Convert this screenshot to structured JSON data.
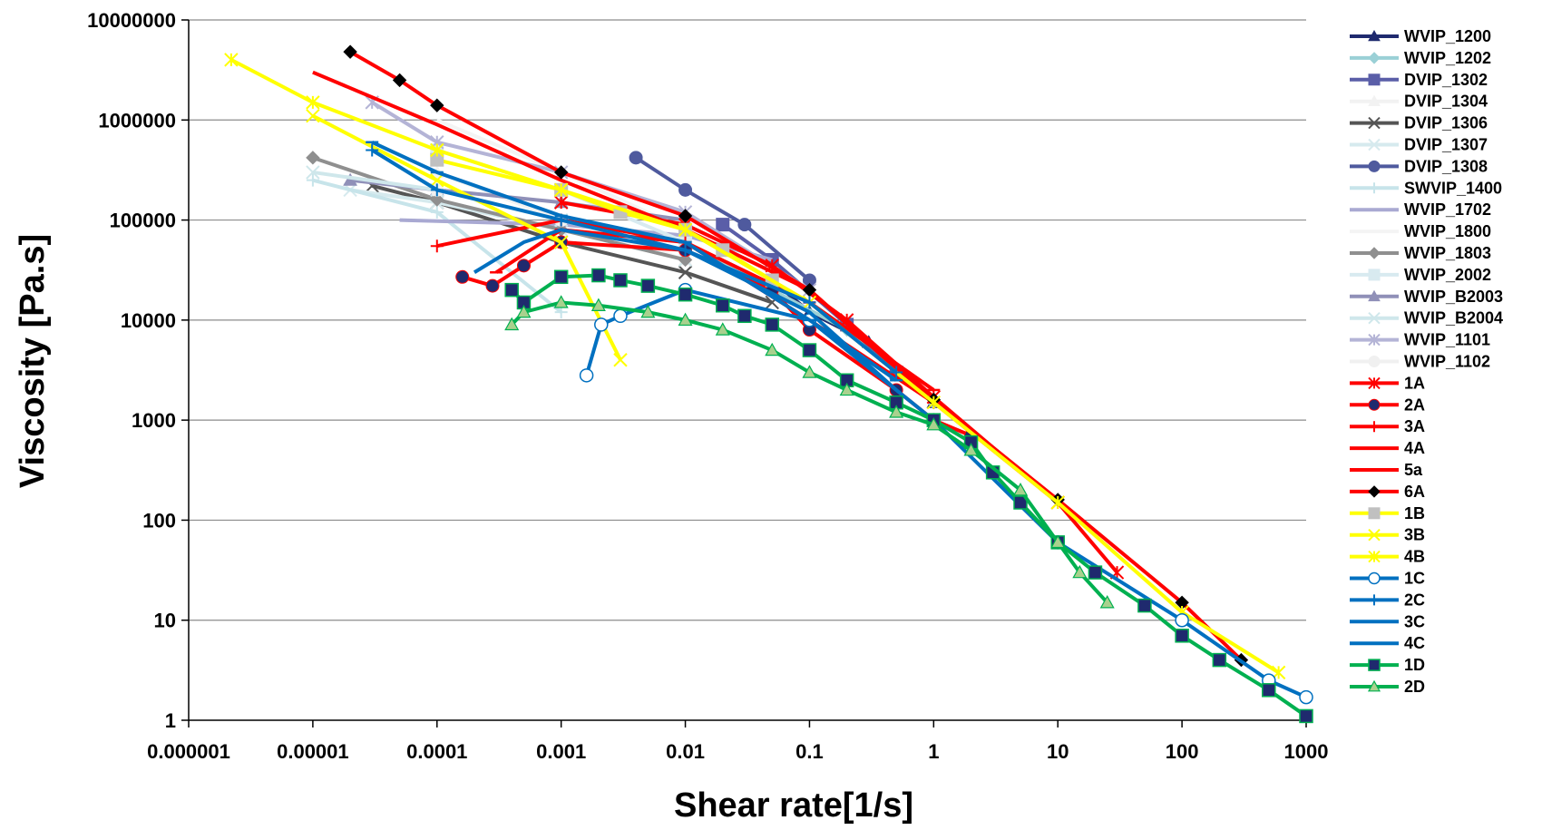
{
  "chart_data": {
    "type": "line",
    "title": "",
    "xlabel": "Shear rate[1/s]",
    "ylabel": "Viscosity [Pa.s]",
    "x_scale": "log",
    "y_scale": "log",
    "xlim": [
      1e-06,
      1000
    ],
    "ylim": [
      1,
      10000000
    ],
    "x_ticks": [
      "0.000001",
      "0.00001",
      "0.0001",
      "0.001",
      "0.01",
      "0.1",
      "1",
      "10",
      "100",
      "1000"
    ],
    "y_ticks": [
      "1",
      "10",
      "100",
      "1000",
      "10000",
      "100000",
      "1000000",
      "10000000"
    ],
    "grid": "horizontal",
    "legend_position": "right",
    "series": [
      {
        "name": "WVIP_1200",
        "color": "#1f2a6e",
        "marker": "triangle",
        "points": [
          [
            0.05,
            25000
          ],
          [
            0.1,
            12000
          ],
          [
            0.3,
            6000
          ],
          [
            1,
            1500
          ]
        ]
      },
      {
        "name": "WVIP_1202",
        "color": "#9ad0d6",
        "marker": "diamond",
        "points": [
          [
            0.01,
            60000
          ],
          [
            0.05,
            20000
          ],
          [
            0.2,
            8000
          ],
          [
            1,
            1500
          ]
        ]
      },
      {
        "name": "DVIP_1302",
        "color": "#5a5ea8",
        "marker": "square",
        "points": [
          [
            0.02,
            90000
          ],
          [
            0.05,
            40000
          ],
          [
            0.2,
            9000
          ],
          [
            0.5,
            3000
          ]
        ]
      },
      {
        "name": "DVIP_1304",
        "color": "#f2f2f2",
        "marker": "triangle",
        "points": [
          [
            0.0001,
            300000
          ],
          [
            0.001,
            100000
          ],
          [
            0.01,
            40000
          ]
        ]
      },
      {
        "name": "DVIP_1306",
        "color": "#555555",
        "marker": "x",
        "points": [
          [
            3e-05,
            220000
          ],
          [
            0.0001,
            150000
          ],
          [
            0.001,
            60000
          ],
          [
            0.01,
            30000
          ],
          [
            0.05,
            15000
          ]
        ]
      },
      {
        "name": "DVIP_1307",
        "color": "#d6eaee",
        "marker": "x",
        "points": [
          [
            2e-05,
            200000
          ],
          [
            0.0001,
            150000
          ],
          [
            0.001,
            80000
          ],
          [
            0.01,
            40000
          ]
        ]
      },
      {
        "name": "DVIP_1308",
        "color": "#4f5a9e",
        "marker": "circle",
        "points": [
          [
            0.004,
            420000
          ],
          [
            0.01,
            200000
          ],
          [
            0.03,
            90000
          ],
          [
            0.1,
            25000
          ]
        ]
      },
      {
        "name": "SWVIP_1400",
        "color": "#c7e4ea",
        "marker": "plus",
        "points": [
          [
            1e-05,
            250000
          ],
          [
            0.0001,
            120000
          ],
          [
            0.001,
            12000
          ]
        ]
      },
      {
        "name": "WVIP_1702",
        "color": "#a9a9d2",
        "marker": "none",
        "points": [
          [
            5e-05,
            100000
          ],
          [
            0.001,
            90000
          ],
          [
            0.01,
            70000
          ],
          [
            0.05,
            40000
          ]
        ]
      },
      {
        "name": "WVIP_1800",
        "color": "#f4f4f4",
        "marker": "none",
        "points": [
          [
            0.0001,
            1000000
          ],
          [
            0.001,
            300000
          ],
          [
            0.01,
            80000
          ]
        ]
      },
      {
        "name": "WVIP_1803",
        "color": "#8f8f8f",
        "marker": "diamond",
        "points": [
          [
            1e-05,
            420000
          ],
          [
            0.0001,
            160000
          ],
          [
            0.001,
            80000
          ],
          [
            0.01,
            40000
          ]
        ]
      },
      {
        "name": "WVIP_2002",
        "color": "#d8eaf0",
        "marker": "square",
        "points": [
          [
            0.0001,
            500000
          ],
          [
            0.001,
            200000
          ],
          [
            0.01,
            60000
          ]
        ]
      },
      {
        "name": "WVIP_B2003",
        "color": "#9090b8",
        "marker": "triangle",
        "points": [
          [
            2e-05,
            250000
          ],
          [
            0.0001,
            200000
          ],
          [
            0.001,
            150000
          ],
          [
            0.01,
            100000
          ]
        ]
      },
      {
        "name": "WVIP_B2004",
        "color": "#cfe7eb",
        "marker": "x",
        "points": [
          [
            1e-05,
            300000
          ],
          [
            0.0001,
            200000
          ],
          [
            0.001,
            100000
          ]
        ]
      },
      {
        "name": "WVIP_1101",
        "color": "#b4b4d6",
        "marker": "star",
        "points": [
          [
            3e-05,
            1500000
          ],
          [
            0.0001,
            600000
          ],
          [
            0.001,
            300000
          ],
          [
            0.01,
            120000
          ],
          [
            0.1,
            20000
          ]
        ]
      },
      {
        "name": "WVIP_1102",
        "color": "#f0f0f0",
        "marker": "circle",
        "points": [
          [
            0.0001,
            200000
          ],
          [
            0.001,
            100000
          ],
          [
            0.01,
            50000
          ]
        ]
      },
      {
        "name": "1A",
        "color": "#ff0000",
        "marker": "star",
        "points": [
          [
            0.001,
            150000
          ],
          [
            0.01,
            90000
          ],
          [
            0.05,
            35000
          ],
          [
            0.2,
            10000
          ],
          [
            1,
            1700
          ],
          [
            10,
            150
          ],
          [
            30,
            30
          ]
        ]
      },
      {
        "name": "2A",
        "color": "#ff0000",
        "marker": "circle",
        "points": [
          [
            0.00016,
            27000
          ],
          [
            0.00028,
            22000
          ],
          [
            0.0005,
            35000
          ],
          [
            0.001,
            60000
          ],
          [
            0.01,
            50000
          ],
          [
            0.05,
            20000
          ],
          [
            0.1,
            8000
          ],
          [
            0.5,
            2000
          ],
          [
            1,
            1000
          ],
          [
            2,
            700
          ]
        ]
      },
      {
        "name": "3A",
        "color": "#ff0000",
        "marker": "plus",
        "points": [
          [
            0.0001,
            55000
          ],
          [
            0.001,
            100000
          ],
          [
            0.01,
            60000
          ],
          [
            0.1,
            10000
          ],
          [
            1,
            1500
          ]
        ]
      },
      {
        "name": "4A",
        "color": "#ff0000",
        "marker": "none",
        "points": [
          [
            1e-05,
            3000000
          ],
          [
            0.0001,
            900000
          ],
          [
            0.001,
            250000
          ],
          [
            0.01,
            80000
          ],
          [
            0.1,
            20000
          ],
          [
            1,
            1500
          ],
          [
            10,
            150
          ]
        ]
      },
      {
        "name": "5a",
        "color": "#ff0000",
        "marker": "dash",
        "points": [
          [
            0.0003,
            30000
          ],
          [
            0.001,
            80000
          ],
          [
            0.01,
            60000
          ],
          [
            0.1,
            15000
          ],
          [
            1,
            2000
          ]
        ]
      },
      {
        "name": "6A",
        "color": "#ff0000",
        "marker": "diamond",
        "points": [
          [
            2e-05,
            4800000
          ],
          [
            5e-05,
            2500000
          ],
          [
            0.0001,
            1400000
          ],
          [
            0.001,
            300000
          ],
          [
            0.01,
            110000
          ],
          [
            0.1,
            20000
          ],
          [
            1,
            1600
          ],
          [
            10,
            160
          ],
          [
            100,
            15
          ],
          [
            300,
            4
          ]
        ]
      },
      {
        "name": "1B",
        "color": "#ffff00",
        "marker": "square",
        "points": [
          [
            0.0001,
            400000
          ],
          [
            0.001,
            200000
          ],
          [
            0.003,
            120000
          ],
          [
            0.01,
            80000
          ],
          [
            0.02,
            50000
          ],
          [
            0.05,
            25000
          ]
        ]
      },
      {
        "name": "3B",
        "color": "#ffff00",
        "marker": "x",
        "points": [
          [
            1e-05,
            1100000
          ],
          [
            0.0001,
            250000
          ],
          [
            0.001,
            60000
          ],
          [
            0.003,
            4000
          ]
        ]
      },
      {
        "name": "4B",
        "color": "#ffff00",
        "marker": "star",
        "points": [
          [
            2.2e-06,
            4000000
          ],
          [
            1e-05,
            1500000
          ],
          [
            0.0001,
            500000
          ],
          [
            0.001,
            200000
          ],
          [
            0.01,
            80000
          ],
          [
            0.1,
            15000
          ],
          [
            1,
            1500
          ],
          [
            10,
            150
          ],
          [
            100,
            12
          ],
          [
            600,
            3
          ]
        ]
      },
      {
        "name": "1C",
        "color": "#0070c0",
        "marker": "circle-open",
        "points": [
          [
            0.0016,
            2800
          ],
          [
            0.0021,
            9000
          ],
          [
            0.003,
            11000
          ],
          [
            0.01,
            20000
          ],
          [
            0.1,
            10000
          ],
          [
            1,
            1000
          ],
          [
            10,
            60
          ],
          [
            100,
            10
          ],
          [
            500,
            2.5
          ],
          [
            1000,
            1.7
          ]
        ]
      },
      {
        "name": "2C",
        "color": "#0070c0",
        "marker": "plus",
        "points": [
          [
            3e-05,
            500000
          ],
          [
            0.0001,
            200000
          ],
          [
            0.001,
            100000
          ],
          [
            0.01,
            50000
          ],
          [
            0.1,
            15000
          ],
          [
            0.5,
            3000
          ]
        ]
      },
      {
        "name": "3C",
        "color": "#0070c0",
        "marker": "dash",
        "points": [
          [
            3e-05,
            600000
          ],
          [
            0.0001,
            300000
          ],
          [
            0.001,
            110000
          ],
          [
            0.01,
            60000
          ],
          [
            0.1,
            10000
          ],
          [
            0.5,
            2500
          ]
        ]
      },
      {
        "name": "4C",
        "color": "#0070c0",
        "marker": "none",
        "points": [
          [
            0.0002,
            30000
          ],
          [
            0.0005,
            60000
          ],
          [
            0.001,
            80000
          ],
          [
            0.01,
            50000
          ],
          [
            0.1,
            12000
          ],
          [
            0.5,
            2000
          ]
        ]
      },
      {
        "name": "1D",
        "color": "#00b050",
        "marker": "square-navy",
        "points": [
          [
            0.0004,
            20000
          ],
          [
            0.0005,
            15000
          ],
          [
            0.001,
            27000
          ],
          [
            0.002,
            28000
          ],
          [
            0.003,
            25000
          ],
          [
            0.005,
            22000
          ],
          [
            0.01,
            18000
          ],
          [
            0.02,
            14000
          ],
          [
            0.03,
            11000
          ],
          [
            0.05,
            9000
          ],
          [
            0.1,
            5000
          ],
          [
            0.2,
            2500
          ],
          [
            0.5,
            1500
          ],
          [
            1,
            1000
          ],
          [
            2,
            600
          ],
          [
            3,
            300
          ],
          [
            5,
            150
          ],
          [
            10,
            60
          ],
          [
            20,
            30
          ],
          [
            50,
            14
          ],
          [
            100,
            7
          ],
          [
            200,
            4
          ],
          [
            500,
            2
          ],
          [
            1000,
            1.1
          ]
        ]
      },
      {
        "name": "2D",
        "color": "#00b050",
        "marker": "triangle-gray",
        "points": [
          [
            0.0004,
            9000
          ],
          [
            0.0005,
            12000
          ],
          [
            0.001,
            15000
          ],
          [
            0.002,
            14000
          ],
          [
            0.005,
            12000
          ],
          [
            0.01,
            10000
          ],
          [
            0.02,
            8000
          ],
          [
            0.05,
            5000
          ],
          [
            0.1,
            3000
          ],
          [
            0.2,
            2000
          ],
          [
            0.5,
            1200
          ],
          [
            1,
            900
          ],
          [
            2,
            500
          ],
          [
            5,
            200
          ],
          [
            10,
            60
          ],
          [
            15,
            30
          ],
          [
            25,
            15
          ]
        ]
      }
    ]
  }
}
